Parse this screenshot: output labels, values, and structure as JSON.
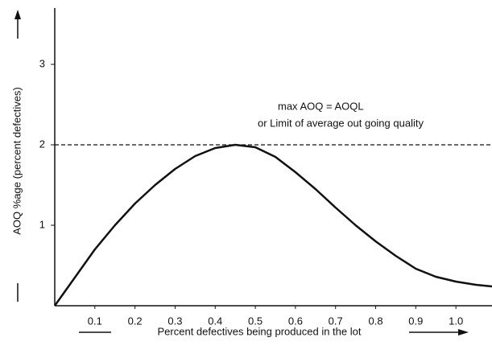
{
  "chart_data": {
    "type": "line",
    "x_label": "Percent defectives being produced in the lot",
    "y_label": "AOQ %age (percent defectives)",
    "annotation": [
      "max AOQ = AOQL",
      "or  Limit of average out going quality"
    ],
    "x": [
      0,
      0.05,
      0.1,
      0.15,
      0.2,
      0.25,
      0.3,
      0.35,
      0.4,
      0.45,
      0.5,
      0.55,
      0.6,
      0.65,
      0.7,
      0.75,
      0.8,
      0.85,
      0.9,
      0.95,
      1.0,
      1.05,
      1.09
    ],
    "series": [
      {
        "color": "#111111",
        "values": [
          0,
          0.35,
          0.7,
          1.0,
          1.27,
          1.5,
          1.7,
          1.86,
          1.96,
          2.0,
          1.97,
          1.85,
          1.66,
          1.45,
          1.22,
          1.0,
          0.8,
          0.62,
          0.46,
          0.36,
          0.3,
          0.26,
          0.24
        ]
      }
    ],
    "aoql": 2,
    "xlim": [
      0,
      1.09
    ],
    "ylim": [
      0,
      3.7
    ],
    "xticks": [
      0.1,
      0.2,
      0.3,
      0.4,
      0.5,
      0.6,
      0.7,
      0.8,
      0.9,
      {
        "value": 1,
        "label": "1.0"
      }
    ],
    "yticks": [
      1,
      2,
      3
    ]
  }
}
